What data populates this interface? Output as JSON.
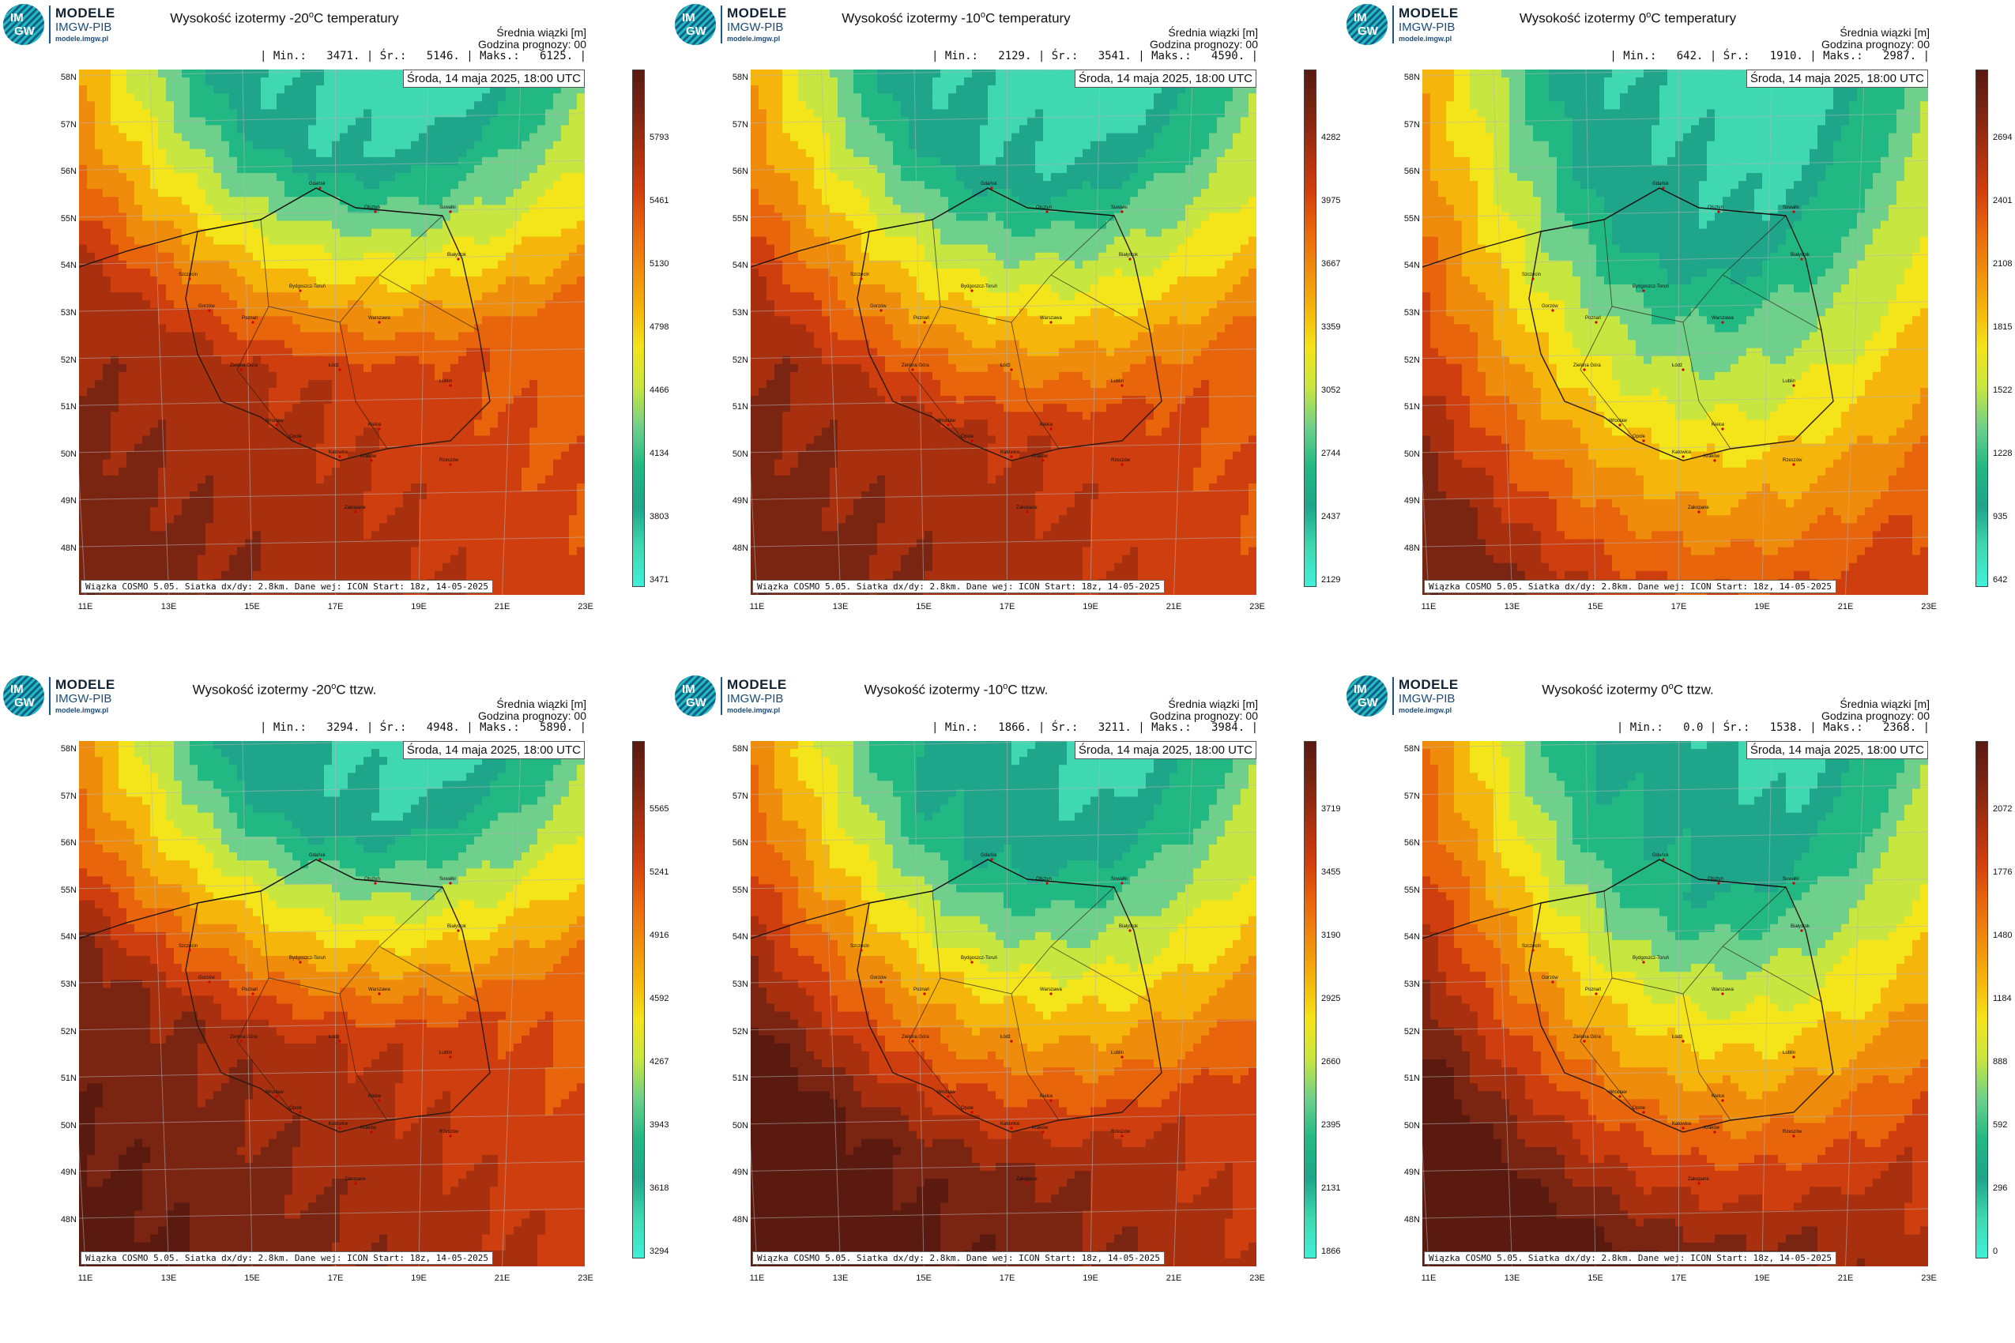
{
  "logo": {
    "mark_top": "IM",
    "mark_bottom": "GW",
    "name": "MODELE",
    "org": "IMGW-PIB",
    "url": "modele.imgw.pl"
  },
  "common": {
    "mean_label": "Średnia wiązki [m]",
    "forecast_hour": "Godzina prognozy: 00",
    "datetime": "Środa, 14 maja 2025, 18:00 UTC",
    "footer": "Wiązka COSMO 5.05. Siatka dx/dy: 2.8km. Dane wej: ICON Start: 18z, 14-05-2025",
    "lat_labels": [
      "58N",
      "57N",
      "56N",
      "55N",
      "54N",
      "53N",
      "52N",
      "51N",
      "50N",
      "49N",
      "48N"
    ],
    "lon_labels": [
      "11E",
      "13E",
      "15E",
      "17E",
      "19E",
      "21E",
      "23E"
    ],
    "cities": [
      "Gdańsk",
      "Olsztyn",
      "Suwałki",
      "Białystok",
      "Szczecin",
      "Bydgoszcz-Toruń",
      "Gorzów",
      "Poznań",
      "Warszawa",
      "Zielona Góra",
      "Łódź",
      "Lublin",
      "Wrocław",
      "Kielce",
      "Opole",
      "Katowice",
      "Kraków",
      "Rzeszów",
      "Zakopane"
    ]
  },
  "panels": [
    {
      "title_pre": "Wysokość izotermy -20",
      "title_sup": "o",
      "title_post": "C temperatury",
      "stats": "| Min.:   3471. | Śr.:   5146. | Maks.:   6125. |",
      "colorbar_ticks": [
        "5793",
        "5461",
        "5130",
        "4798",
        "4466",
        "4134",
        "3803",
        "3471"
      ],
      "field": {
        "green_extent": 0.24,
        "warm_bias": 0.55
      }
    },
    {
      "title_pre": "Wysokość izotermy -10",
      "title_sup": "o",
      "title_post": "C temperatury",
      "stats": "| Min.:   2129. | Śr.:   3541. | Maks.:   4590. |",
      "colorbar_ticks": [
        "4282",
        "3975",
        "3667",
        "3359",
        "3052",
        "2744",
        "2437",
        "2129"
      ],
      "field": {
        "green_extent": 0.28,
        "warm_bias": 0.55
      }
    },
    {
      "title_pre": "Wysokość izotermy 0",
      "title_sup": "o",
      "title_post": "C temperatury",
      "stats": "| Min.:   642. | Śr.:   1910. | Maks.:   2987. |",
      "colorbar_ticks": [
        "2694",
        "2401",
        "2108",
        "1815",
        "1522",
        "1228",
        "935",
        "642"
      ],
      "field": {
        "green_extent": 0.45,
        "warm_bias": 0.55
      }
    },
    {
      "title_pre": "Wysokość izotermy -20",
      "title_sup": "o",
      "title_post": "C ttzw.",
      "stats": "| Min.:   3294. | Śr.:   4948. | Maks.:   5890. |",
      "colorbar_ticks": [
        "5565",
        "5241",
        "4916",
        "4592",
        "4267",
        "3943",
        "3618",
        "3294"
      ],
      "field": {
        "green_extent": 0.24,
        "warm_bias": 0.65
      }
    },
    {
      "title_pre": "Wysokość izotermy -10",
      "title_sup": "o",
      "title_post": "C ttzw.",
      "stats": "| Min.:   1866. | Śr.:   3211. | Maks.:   3984. |",
      "colorbar_ticks": [
        "3719",
        "3455",
        "3190",
        "2925",
        "2660",
        "2395",
        "2131",
        "1866"
      ],
      "field": {
        "green_extent": 0.33,
        "warm_bias": 0.75
      }
    },
    {
      "title_pre": "Wysokość izotermy 0",
      "title_sup": "o",
      "title_post": "C ttzw.",
      "stats": "| Min.:   0.0 | Śr.:   1538. | Maks.:   2368. |",
      "colorbar_ticks": [
        "2072",
        "1776",
        "1480",
        "1184",
        "888",
        "592",
        "296",
        "0"
      ],
      "field": {
        "green_extent": 0.4,
        "warm_bias": 0.8
      }
    }
  ],
  "colors": {
    "palette": [
      "#5a1a10",
      "#7a2412",
      "#a8300f",
      "#cf3e0e",
      "#e8650c",
      "#f08c0c",
      "#f5b50a",
      "#f4e41a",
      "#c8e640",
      "#6ed08a",
      "#22b884",
      "#1fa58a",
      "#3fd8b0",
      "#3ff0d8"
    ]
  }
}
